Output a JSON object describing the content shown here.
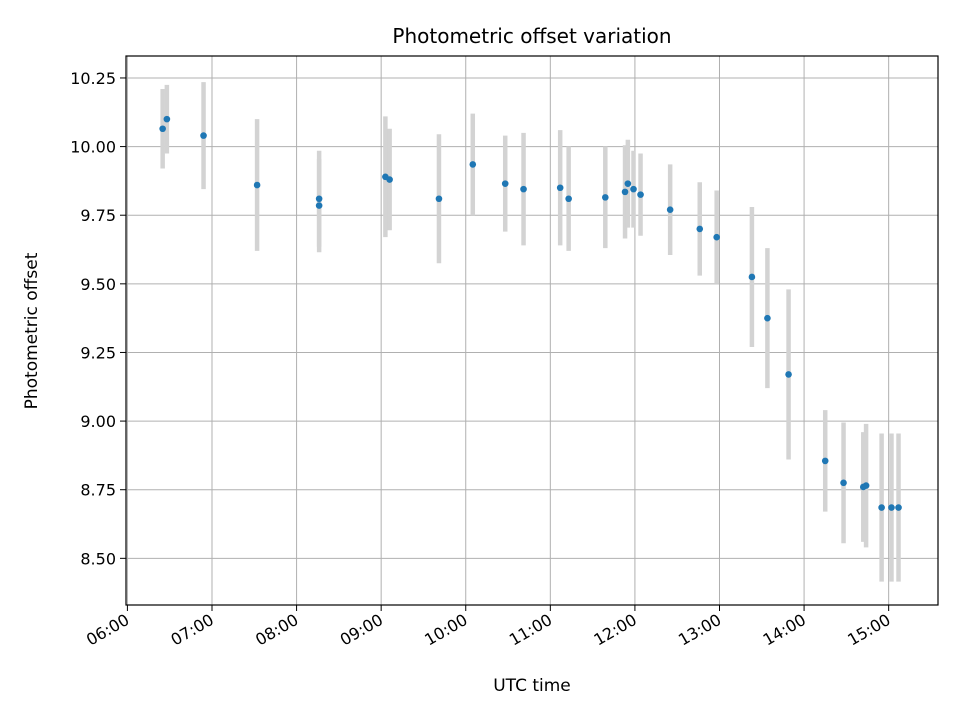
{
  "chart_data": {
    "type": "scatter",
    "title": "Photometric offset variation",
    "xlabel": "UTC time",
    "ylabel": "Photometric offset",
    "x_axis_type": "time",
    "xlim": [
      "05:59",
      "15:35"
    ],
    "ylim": [
      8.33,
      10.33
    ],
    "xticks": [
      "06:00",
      "07:00",
      "08:00",
      "09:00",
      "10:00",
      "11:00",
      "12:00",
      "13:00",
      "14:00",
      "15:00"
    ],
    "yticks": [
      8.5,
      8.75,
      9.0,
      9.25,
      9.5,
      9.75,
      10.0,
      10.25
    ],
    "ytick_labels": [
      "8.50",
      "8.75",
      "9.00",
      "9.25",
      "9.50",
      "9.75",
      "10.00",
      "10.25"
    ],
    "grid": true,
    "errorbar_color": "#d3d3d3",
    "marker_color": "#1f77b4",
    "points": [
      {
        "x": "06:25",
        "y": 10.065,
        "err": 0.145
      },
      {
        "x": "06:28",
        "y": 10.1,
        "err": 0.125
      },
      {
        "x": "06:54",
        "y": 10.04,
        "err": 0.195
      },
      {
        "x": "07:32",
        "y": 9.86,
        "err": 0.24
      },
      {
        "x": "08:16",
        "y": 9.785,
        "err": 0.17
      },
      {
        "x": "08:16",
        "y": 9.81,
        "err": 0.175
      },
      {
        "x": "09:03",
        "y": 9.89,
        "err": 0.22
      },
      {
        "x": "09:06",
        "y": 9.88,
        "err": 0.185
      },
      {
        "x": "09:41",
        "y": 9.81,
        "err": 0.235
      },
      {
        "x": "10:05",
        "y": 9.935,
        "err": 0.185
      },
      {
        "x": "10:28",
        "y": 9.865,
        "err": 0.175
      },
      {
        "x": "10:41",
        "y": 9.845,
        "err": 0.205
      },
      {
        "x": "11:07",
        "y": 9.85,
        "err": 0.21
      },
      {
        "x": "11:13",
        "y": 9.81,
        "err": 0.19
      },
      {
        "x": "11:39",
        "y": 9.815,
        "err": 0.185
      },
      {
        "x": "11:53",
        "y": 9.835,
        "err": 0.17
      },
      {
        "x": "11:55",
        "y": 9.865,
        "err": 0.16
      },
      {
        "x": "11:59",
        "y": 9.845,
        "err": 0.14
      },
      {
        "x": "12:04",
        "y": 9.825,
        "err": 0.15
      },
      {
        "x": "12:25",
        "y": 9.77,
        "err": 0.165
      },
      {
        "x": "12:46",
        "y": 9.7,
        "err": 0.17
      },
      {
        "x": "12:58",
        "y": 9.67,
        "err": 0.17
      },
      {
        "x": "13:23",
        "y": 9.525,
        "err": 0.255
      },
      {
        "x": "13:34",
        "y": 9.375,
        "err": 0.255
      },
      {
        "x": "13:49",
        "y": 9.17,
        "err": 0.31
      },
      {
        "x": "14:15",
        "y": 8.855,
        "err": 0.185
      },
      {
        "x": "14:28",
        "y": 8.775,
        "err": 0.22
      },
      {
        "x": "14:42",
        "y": 8.76,
        "err": 0.2
      },
      {
        "x": "14:44",
        "y": 8.765,
        "err": 0.225
      },
      {
        "x": "14:55",
        "y": 8.685,
        "err": 0.27
      },
      {
        "x": "15:02",
        "y": 8.685,
        "err": 0.27
      },
      {
        "x": "15:07",
        "y": 8.685,
        "err": 0.27
      }
    ]
  }
}
